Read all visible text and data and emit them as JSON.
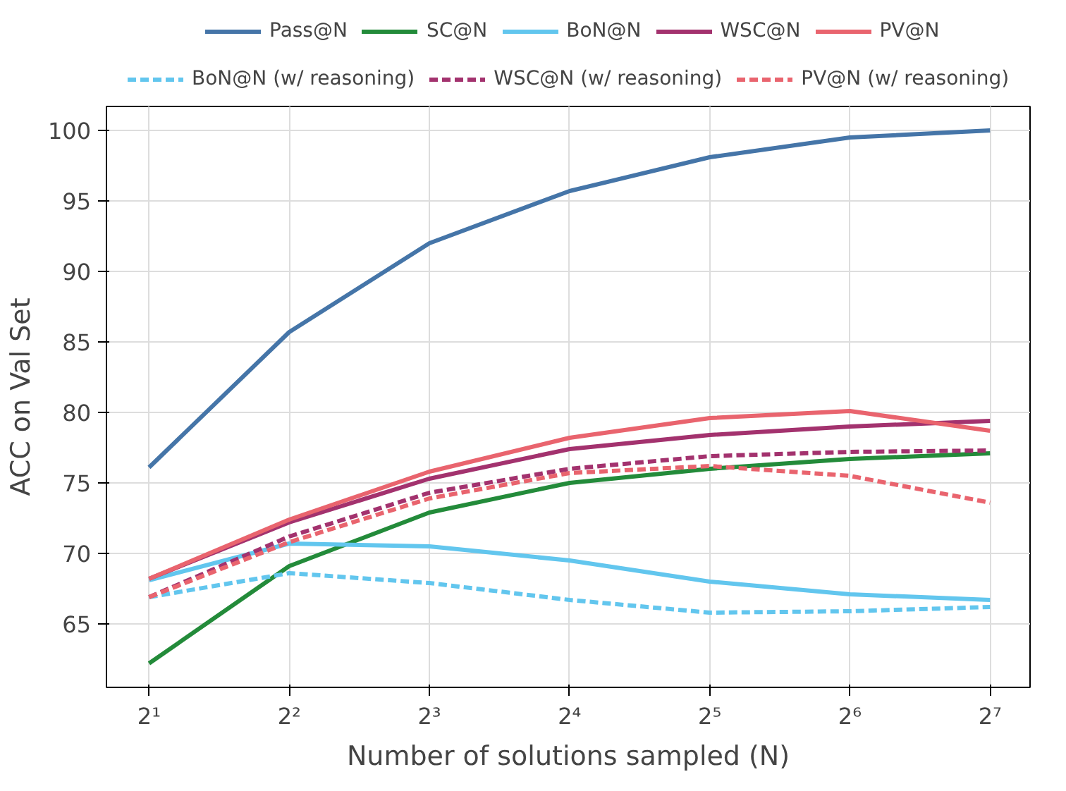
{
  "chart_data": {
    "type": "line",
    "xlabel": "Number of solutions sampled (N)",
    "ylabel": "ACC on Val Set",
    "log": "x",
    "x": [
      2,
      4,
      8,
      16,
      32,
      64,
      128
    ],
    "xlim": [
      1.62,
      156
    ],
    "xticks": [
      {
        "value": 2,
        "label": "2¹"
      },
      {
        "value": 4,
        "label": "2²"
      },
      {
        "value": 8,
        "label": "2³"
      },
      {
        "value": 16,
        "label": "2⁴"
      },
      {
        "value": 32,
        "label": "2⁵"
      },
      {
        "value": 64,
        "label": "2⁶"
      },
      {
        "value": 128,
        "label": "2⁷"
      }
    ],
    "ylim": [
      60.5,
      101.7
    ],
    "yticks": [
      65,
      70,
      75,
      80,
      85,
      90,
      95,
      100
    ],
    "grid": true,
    "legend": "top",
    "marker": "none",
    "series": [
      {
        "name": "Pass@N",
        "color": "#4575a8",
        "line_style": "solid",
        "values": [
          76.1,
          85.7,
          92.0,
          95.7,
          98.1,
          99.5,
          100.0
        ]
      },
      {
        "name": "SC@N",
        "color": "#238b3a",
        "line_style": "solid",
        "values": [
          62.2,
          69.1,
          72.9,
          75.0,
          76.0,
          76.7,
          77.1
        ]
      },
      {
        "name": "BoN@N",
        "color": "#62c6ee",
        "line_style": "solid",
        "values": [
          68.1,
          70.7,
          70.5,
          69.5,
          68.0,
          67.1,
          66.7
        ]
      },
      {
        "name": "WSC@N",
        "color": "#a3326e",
        "line_style": "solid",
        "values": [
          68.2,
          72.2,
          75.3,
          77.4,
          78.4,
          79.0,
          79.4
        ]
      },
      {
        "name": "PV@N",
        "color": "#e9646e",
        "line_style": "solid",
        "values": [
          68.2,
          72.4,
          75.8,
          78.2,
          79.6,
          80.1,
          78.7
        ]
      },
      {
        "name": "BoN@N (w/ reasoning)",
        "color": "#62c6ee",
        "line_style": "dashed",
        "values": [
          66.9,
          68.6,
          67.9,
          66.7,
          65.8,
          65.9,
          66.2
        ]
      },
      {
        "name": "WSC@N (w/ reasoning)",
        "color": "#a3326e",
        "line_style": "dashed",
        "values": [
          66.9,
          71.2,
          74.3,
          76.0,
          76.9,
          77.2,
          77.3
        ]
      },
      {
        "name": "PV@N (w/ reasoning)",
        "color": "#e9646e",
        "line_style": "dashed",
        "values": [
          66.9,
          70.8,
          73.9,
          75.7,
          76.2,
          75.5,
          73.6
        ]
      }
    ]
  }
}
